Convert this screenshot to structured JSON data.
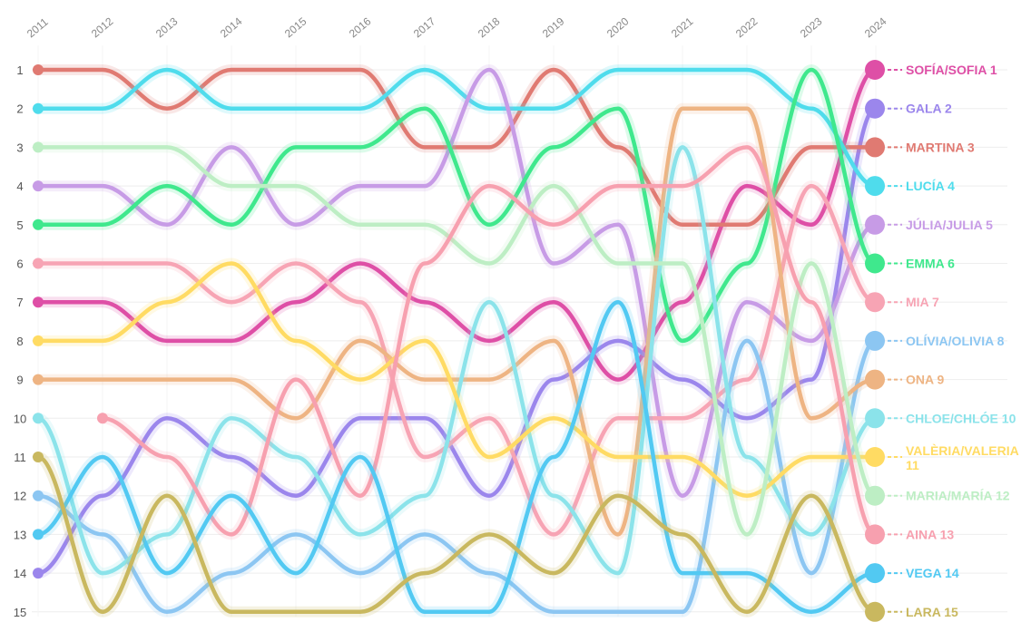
{
  "chart_data": {
    "type": "line",
    "title": "",
    "xlabel": "",
    "ylabel": "",
    "x": [
      "2011",
      "2012",
      "2013",
      "2014",
      "2015",
      "2016",
      "2017",
      "2018",
      "2019",
      "2020",
      "2021",
      "2022",
      "2023",
      "2024"
    ],
    "yticks": [
      "1",
      "2",
      "3",
      "4",
      "5",
      "6",
      "7",
      "8",
      "9",
      "10",
      "11",
      "12",
      "13",
      "14",
      "15"
    ],
    "ylim": [
      15,
      1
    ],
    "grid": true,
    "legend": "end labels at right",
    "series": [
      {
        "name": "SOFÍA/SOFIA",
        "end_label": "SOFÍA/SOFIA 1",
        "color": "#de4fa6",
        "values": [
          7,
          7,
          8,
          8,
          7,
          6,
          7,
          8,
          7,
          9,
          7,
          4,
          5,
          1
        ]
      },
      {
        "name": "GALA",
        "end_label": "GALA 2",
        "color": "#9b86ec",
        "values": [
          14,
          12,
          10,
          11,
          12,
          10,
          10,
          12,
          9,
          8,
          9,
          10,
          9,
          2
        ]
      },
      {
        "name": "MARTINA",
        "end_label": "MARTINA 3",
        "color": "#e07a72",
        "values": [
          1,
          1,
          2,
          1,
          1,
          1,
          3,
          3,
          1,
          3,
          5,
          5,
          3,
          3
        ]
      },
      {
        "name": "LUCÍA",
        "end_label": "LUCÍA 4",
        "color": "#4fdcec",
        "values": [
          2,
          2,
          1,
          2,
          2,
          2,
          1,
          2,
          2,
          1,
          1,
          1,
          2,
          4
        ]
      },
      {
        "name": "JÚLIA/JULIA",
        "end_label": "JÚLIA/JULIA 5",
        "color": "#c79be6",
        "values": [
          4,
          4,
          5,
          3,
          5,
          4,
          4,
          1,
          6,
          5,
          12,
          7,
          8,
          5
        ]
      },
      {
        "name": "EMMA",
        "end_label": "EMMA 6",
        "color": "#3fe88d",
        "values": [
          5,
          5,
          4,
          5,
          3,
          3,
          2,
          5,
          3,
          2,
          8,
          6,
          1,
          6
        ]
      },
      {
        "name": "MIA",
        "end_label": "MIA 7",
        "color": "#f7a4b4",
        "values": [
          6,
          6,
          6,
          7,
          6,
          7,
          11,
          10,
          13,
          10,
          10,
          9,
          4,
          7
        ]
      },
      {
        "name": "OLÍVIA/OLIVIA",
        "end_label": "OLÍVIA/OLIVIA 8",
        "color": "#8cc6f2",
        "values": [
          12,
          13,
          15,
          14,
          13,
          14,
          13,
          14,
          15,
          15,
          15,
          8,
          14,
          8
        ]
      },
      {
        "name": "ONA",
        "end_label": "ONA 9",
        "color": "#eeb483",
        "values": [
          9,
          9,
          9,
          9,
          10,
          8,
          9,
          9,
          8,
          13,
          2,
          2,
          10,
          9
        ]
      },
      {
        "name": "CHLOE/CHLÓE",
        "end_label": "CHLOE/CHLÓE 10",
        "color": "#8be3ea",
        "values": [
          10,
          14,
          13,
          10,
          11,
          13,
          12,
          7,
          12,
          14,
          3,
          11,
          13,
          10
        ]
      },
      {
        "name": "VALÈRIA/VALERIA",
        "end_label": "VALÈRIA/VALERIA 11",
        "color": "#ffdb63",
        "values": [
          8,
          8,
          7,
          6,
          8,
          9,
          8,
          11,
          10,
          11,
          11,
          12,
          11,
          11
        ]
      },
      {
        "name": "MARIA/MARÍA",
        "end_label": "MARIA/MARÍA 12",
        "color": "#bdeec4",
        "values": [
          3,
          3,
          3,
          4,
          4,
          5,
          5,
          6,
          4,
          6,
          6,
          13,
          6,
          12
        ]
      },
      {
        "name": "AINA",
        "end_label": "AINA 13",
        "color": "#f7a0af",
        "values": [
          null,
          10,
          11,
          13,
          9,
          12,
          6,
          4,
          5,
          4,
          4,
          3,
          7,
          13
        ]
      },
      {
        "name": "VEGA",
        "end_label": "VEGA 14",
        "color": "#52c9f2",
        "values": [
          13,
          11,
          14,
          12,
          14,
          11,
          15,
          15,
          11,
          7,
          14,
          14,
          15,
          14
        ]
      },
      {
        "name": "LARA",
        "end_label": "LARA 15",
        "color": "#c9b85f",
        "values": [
          11,
          15,
          12,
          15,
          15,
          15,
          14,
          13,
          14,
          12,
          13,
          15,
          12,
          15
        ]
      }
    ]
  }
}
